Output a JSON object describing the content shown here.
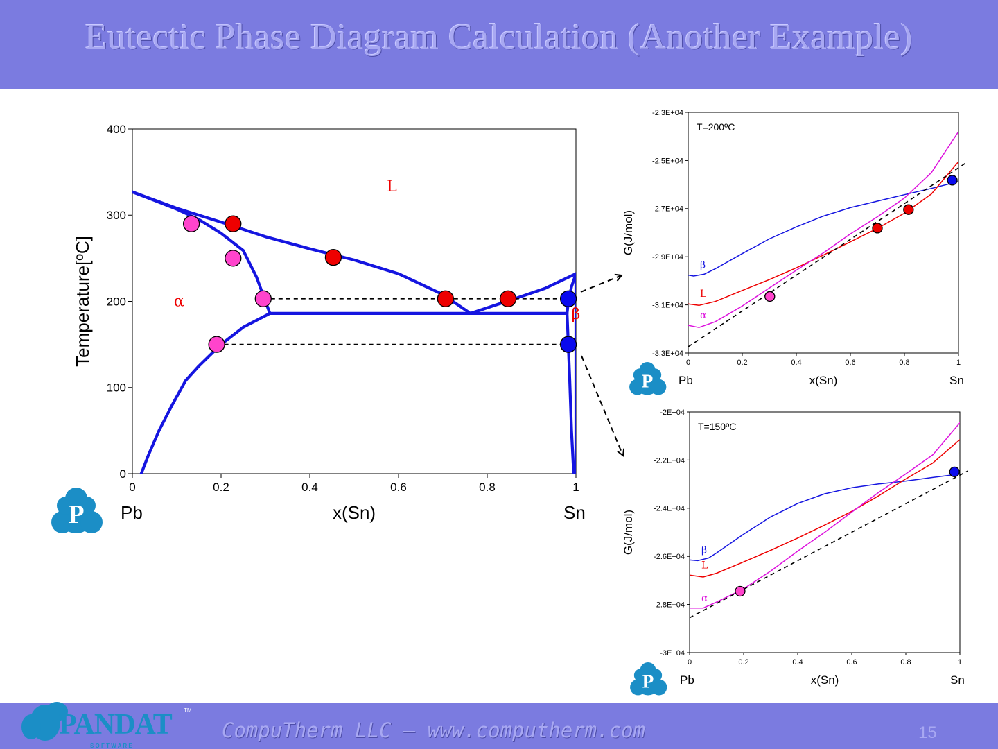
{
  "slide": {
    "title": "Eutectic Phase Diagram Calculation (Another Example)",
    "footer": "CompuTherm LLC – www.computherm.com",
    "page_number": "15",
    "logo_text": "PANDAT",
    "logo_sub": "S O F T W A R E",
    "logo_tm": "TM",
    "logo_badge": "P"
  },
  "colors": {
    "banner": "#7b7be0",
    "phase_boundary": "#1515e0",
    "liquid_point": "#ee0000",
    "alpha_point": "#ff44cc",
    "beta_point": "#0a0aee",
    "logo": "#1b8ec6"
  },
  "chart_data": [
    {
      "type": "line",
      "id": "phase-diagram",
      "xlabel": "x(Sn)",
      "ylabel": "Temperature[ºC]",
      "xlim": [
        0,
        1
      ],
      "ylim": [
        0,
        400
      ],
      "xticks": [
        "0",
        "0.2",
        "0.4",
        "0.6",
        "0.8",
        "1"
      ],
      "yticks": [
        "0",
        "100",
        "200",
        "300",
        "400"
      ],
      "left_element": "Pb",
      "right_element": "Sn",
      "region_labels": [
        {
          "text": "L",
          "x": 0.585,
          "y": 333,
          "color": "#ee0000"
        },
        {
          "text": "α",
          "x": 0.105,
          "y": 200,
          "color": "#ee0000"
        },
        {
          "text": "β",
          "x": 1.0,
          "y": 185,
          "color": "#ee0000"
        }
      ],
      "series": [
        {
          "role": "liquidus-alpha",
          "points": [
            [
              0,
              327
            ],
            [
              0.1,
              308
            ],
            [
              0.2,
              292
            ],
            [
              0.3,
              275
            ],
            [
              0.4,
              261
            ],
            [
              0.5,
              248
            ],
            [
              0.6,
              232
            ],
            [
              0.7,
              208
            ],
            [
              0.762,
              186
            ]
          ]
        },
        {
          "role": "liquidus-beta",
          "points": [
            [
              0.762,
              186
            ],
            [
              0.85,
              201
            ],
            [
              0.93,
              215
            ],
            [
              1.0,
              232
            ]
          ]
        },
        {
          "role": "solidus-alpha",
          "points": [
            [
              0,
              327
            ],
            [
              0.05,
              317
            ],
            [
              0.1,
              307
            ],
            [
              0.15,
              295
            ],
            [
              0.2,
              279
            ],
            [
              0.25,
              259
            ],
            [
              0.28,
              228
            ],
            [
              0.31,
              186
            ]
          ]
        },
        {
          "role": "solvus-alpha",
          "points": [
            [
              0.31,
              186
            ],
            [
              0.25,
              170
            ],
            [
              0.2,
              150
            ],
            [
              0.15,
              125
            ],
            [
              0.12,
              108
            ],
            [
              0.09,
              80
            ],
            [
              0.06,
              50
            ],
            [
              0.035,
              20
            ],
            [
              0.02,
              0
            ]
          ]
        },
        {
          "role": "eutectic-line",
          "points": [
            [
              0.31,
              186
            ],
            [
              0.98,
              186
            ]
          ]
        },
        {
          "role": "solidus-beta",
          "points": [
            [
              0.98,
              186
            ],
            [
              0.983,
              200
            ],
            [
              0.99,
              217
            ],
            [
              1.0,
              232
            ]
          ]
        },
        {
          "role": "solvus-beta",
          "points": [
            [
              0.98,
              186
            ],
            [
              0.982,
              160
            ],
            [
              0.986,
              110
            ],
            [
              0.99,
              50
            ],
            [
              0.995,
              0
            ]
          ]
        },
        {
          "role": "sn-edge",
          "points": [
            [
              1.0,
              232
            ],
            [
              1.0,
              0
            ]
          ]
        }
      ],
      "tie_lines": [
        {
          "points": [
            [
              0.295,
              203
            ],
            [
              0.985,
              203
            ]
          ]
        },
        {
          "points": [
            [
              0.19,
              150
            ],
            [
              0.985,
              150
            ]
          ]
        }
      ],
      "points": [
        {
          "x": 0.133,
          "y": 290,
          "phase": "alpha"
        },
        {
          "x": 0.227,
          "y": 290,
          "phase": "liquid"
        },
        {
          "x": 0.227,
          "y": 250,
          "phase": "alpha"
        },
        {
          "x": 0.453,
          "y": 251,
          "phase": "liquid"
        },
        {
          "x": 0.295,
          "y": 203,
          "phase": "alpha"
        },
        {
          "x": 0.706,
          "y": 203,
          "phase": "liquid"
        },
        {
          "x": 0.847,
          "y": 203,
          "phase": "liquid"
        },
        {
          "x": 0.983,
          "y": 203,
          "phase": "beta"
        },
        {
          "x": 0.19,
          "y": 150,
          "phase": "alpha"
        },
        {
          "x": 0.983,
          "y": 150,
          "phase": "beta"
        }
      ]
    },
    {
      "type": "line",
      "id": "gibbs-200",
      "annotation": "T=200ºC",
      "xlabel": "x(Sn)",
      "ylabel": "G(J/mol)",
      "xlim": [
        0,
        1
      ],
      "ylim": [
        -33000,
        -23000
      ],
      "xticks": [
        "0",
        "0.2",
        "0.4",
        "0.6",
        "0.8",
        "1"
      ],
      "yticks": [
        "-3.3E+04",
        "-3.1E+04",
        "-2.9E+04",
        "-2.7E+04",
        "-2.5E+04",
        "-2.3E+04"
      ],
      "left_element": "Pb",
      "right_element": "Sn",
      "series": [
        {
          "name": "β",
          "color": "#1515e0",
          "points": [
            [
              0,
              -29760
            ],
            [
              0.02,
              -29800
            ],
            [
              0.06,
              -29720
            ],
            [
              0.1,
              -29500
            ],
            [
              0.2,
              -28870
            ],
            [
              0.3,
              -28260
            ],
            [
              0.4,
              -27760
            ],
            [
              0.5,
              -27310
            ],
            [
              0.6,
              -26960
            ],
            [
              0.7,
              -26690
            ],
            [
              0.8,
              -26420
            ],
            [
              0.9,
              -26160
            ],
            [
              1.0,
              -25880
            ]
          ]
        },
        {
          "name": "L",
          "color": "#ee0000",
          "points": [
            [
              0,
              -30960
            ],
            [
              0.04,
              -31020
            ],
            [
              0.1,
              -30860
            ],
            [
              0.2,
              -30400
            ],
            [
              0.3,
              -29950
            ],
            [
              0.4,
              -29460
            ],
            [
              0.5,
              -28930
            ],
            [
              0.6,
              -28380
            ],
            [
              0.7,
              -27820
            ],
            [
              0.8,
              -27190
            ],
            [
              0.9,
              -26390
            ],
            [
              1.0,
              -25050
            ]
          ]
        },
        {
          "name": "α",
          "color": "#dd11dd",
          "points": [
            [
              0,
              -31850
            ],
            [
              0.04,
              -31940
            ],
            [
              0.1,
              -31700
            ],
            [
              0.2,
              -31050
            ],
            [
              0.3,
              -30300
            ],
            [
              0.4,
              -29560
            ],
            [
              0.5,
              -28840
            ],
            [
              0.6,
              -28050
            ],
            [
              0.7,
              -27340
            ],
            [
              0.8,
              -26560
            ],
            [
              0.9,
              -25500
            ],
            [
              1.0,
              -23800
            ]
          ]
        }
      ],
      "tangent": {
        "points": [
          [
            0,
            -32740
          ],
          [
            1.03,
            -25080
          ]
        ]
      },
      "points": [
        {
          "x": 0.302,
          "y": -30650,
          "phase": "alpha"
        },
        {
          "x": 0.7,
          "y": -27810,
          "phase": "liquid"
        },
        {
          "x": 0.815,
          "y": -27040,
          "phase": "liquid"
        },
        {
          "x": 0.977,
          "y": -25820,
          "phase": "beta"
        }
      ]
    },
    {
      "type": "line",
      "id": "gibbs-150",
      "annotation": "T=150ºC",
      "xlabel": "x(Sn)",
      "ylabel": "G(J/mol)",
      "xlim": [
        0,
        1
      ],
      "ylim": [
        -30000,
        -20000
      ],
      "xticks": [
        "0",
        "0.2",
        "0.4",
        "0.6",
        "0.8",
        "1"
      ],
      "yticks": [
        "-3E+04",
        "-2.8E+04",
        "-2.6E+04",
        "-2.4E+04",
        "-2.2E+04",
        "-2E+04"
      ],
      "left_element": "Pb",
      "right_element": "Sn",
      "series": [
        {
          "name": "β",
          "color": "#1515e0",
          "points": [
            [
              0,
              -26150
            ],
            [
              0.03,
              -26180
            ],
            [
              0.07,
              -26070
            ],
            [
              0.1,
              -25860
            ],
            [
              0.2,
              -25080
            ],
            [
              0.3,
              -24360
            ],
            [
              0.4,
              -23800
            ],
            [
              0.5,
              -23400
            ],
            [
              0.6,
              -23150
            ],
            [
              0.7,
              -22990
            ],
            [
              0.8,
              -22870
            ],
            [
              0.9,
              -22720
            ],
            [
              1.0,
              -22580
            ]
          ]
        },
        {
          "name": "L",
          "color": "#ee0000",
          "points": [
            [
              0,
              -26780
            ],
            [
              0.05,
              -26860
            ],
            [
              0.1,
              -26700
            ],
            [
              0.2,
              -26230
            ],
            [
              0.3,
              -25750
            ],
            [
              0.4,
              -25240
            ],
            [
              0.5,
              -24700
            ],
            [
              0.6,
              -24130
            ],
            [
              0.7,
              -23480
            ],
            [
              0.8,
              -22780
            ],
            [
              0.9,
              -22120
            ],
            [
              1.0,
              -21150
            ]
          ]
        },
        {
          "name": "α",
          "color": "#dd11dd",
          "points": [
            [
              0,
              -28150
            ],
            [
              0.05,
              -28150
            ],
            [
              0.1,
              -27900
            ],
            [
              0.2,
              -27350
            ],
            [
              0.3,
              -26610
            ],
            [
              0.4,
              -25780
            ],
            [
              0.5,
              -25000
            ],
            [
              0.6,
              -24160
            ],
            [
              0.7,
              -23340
            ],
            [
              0.8,
              -22570
            ],
            [
              0.9,
              -21780
            ],
            [
              1.0,
              -20450
            ]
          ]
        }
      ],
      "tangent": {
        "points": [
          [
            0,
            -28550
          ],
          [
            1.03,
            -22450
          ]
        ]
      },
      "points": [
        {
          "x": 0.187,
          "y": -27450,
          "phase": "alpha"
        },
        {
          "x": 0.98,
          "y": -22490,
          "phase": "beta"
        }
      ]
    }
  ]
}
